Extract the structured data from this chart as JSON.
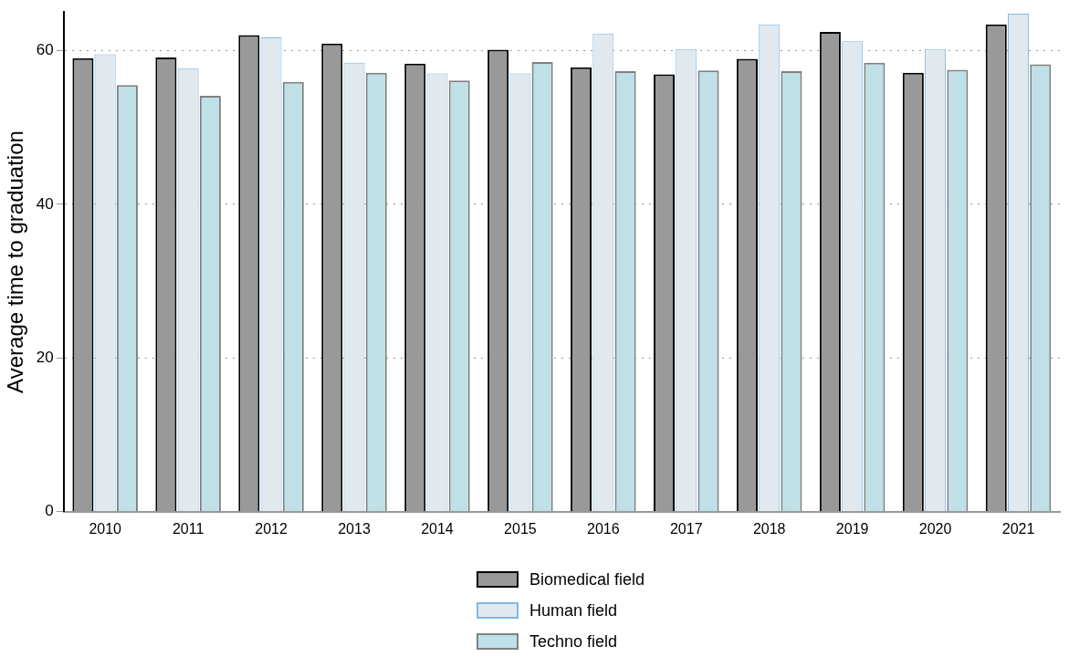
{
  "chart_data": {
    "type": "bar",
    "ylabel": "Average time to graduation",
    "categories": [
      "2010",
      "2011",
      "2012",
      "2013",
      "2014",
      "2015",
      "2016",
      "2017",
      "2018",
      "2019",
      "2020",
      "2021"
    ],
    "series": [
      {
        "name": "Biomedical field",
        "color": "#999999",
        "values": [
          59.0,
          59.1,
          62.0,
          60.9,
          58.3,
          60.1,
          57.8,
          56.9,
          58.9,
          62.4,
          57.1,
          63.4
        ]
      },
      {
        "name": "Human field",
        "color": "#e1e9ef",
        "values": [
          59.5,
          57.7,
          61.7,
          58.4,
          57.0,
          57.0,
          62.2,
          60.2,
          63.4,
          61.2,
          60.2,
          64.8
        ]
      },
      {
        "name": "Techno field",
        "color": "#c0e0e8",
        "values": [
          55.5,
          54.1,
          55.9,
          57.1,
          56.1,
          58.5,
          57.3,
          57.4,
          57.3,
          58.4,
          57.5,
          58.2
        ]
      }
    ],
    "ylim": [
      0,
      65
    ],
    "yticks": [
      0,
      20,
      40,
      60
    ],
    "grid": "y",
    "legend": "bottom"
  }
}
